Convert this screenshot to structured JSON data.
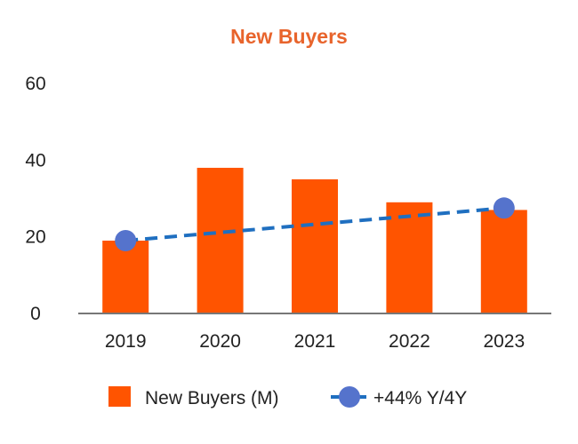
{
  "chart_data": {
    "type": "bar",
    "title": "New Buyers",
    "categories": [
      "2019",
      "2020",
      "2021",
      "2022",
      "2023"
    ],
    "series": [
      {
        "name": "New Buyers (M)",
        "kind": "bar",
        "values": [
          19,
          38,
          35,
          29,
          27
        ]
      },
      {
        "name": "+44% Y/4Y",
        "kind": "trend-line",
        "points": [
          {
            "x": "2019",
            "y": 19
          },
          {
            "x": "2023",
            "y": 27.5
          }
        ]
      }
    ],
    "yticks": [
      0,
      20,
      40,
      60
    ],
    "ylim": [
      0,
      60
    ],
    "xlabel": "",
    "ylabel": "",
    "grid": false,
    "legend": "bottom"
  },
  "colors": {
    "title": "#E8642C",
    "bar": "#FF5400",
    "trend_line": "#1F6FC0",
    "trend_marker": "#5573CC",
    "axis": "#777777"
  }
}
